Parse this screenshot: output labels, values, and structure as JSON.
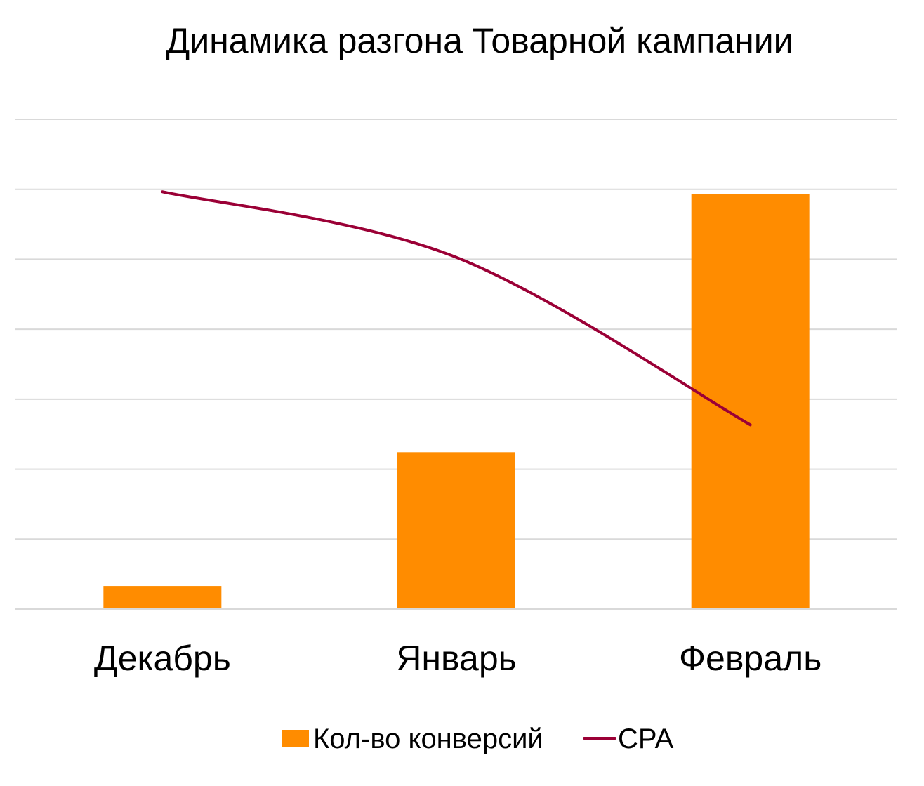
{
  "chart_data": {
    "type": "bar",
    "title": "Динамика разгона Товарной кампании",
    "categories": [
      "Декабрь",
      "Январь",
      "Февраль"
    ],
    "series": [
      {
        "name": "Кол-во конверсий",
        "type": "bar",
        "color": "#FF8C00",
        "values": [
          4.4,
          29.9,
          79.1
        ]
      },
      {
        "name": "CPA",
        "type": "line",
        "color": "#9B0036",
        "smooth": true,
        "values": [
          79.5,
          67.0,
          35.1
        ]
      }
    ],
    "ylim": [
      0,
      93.3
    ],
    "y_axis_labels_shown": false,
    "gridlines": 7,
    "grid": true,
    "legend_position": "bottom"
  }
}
